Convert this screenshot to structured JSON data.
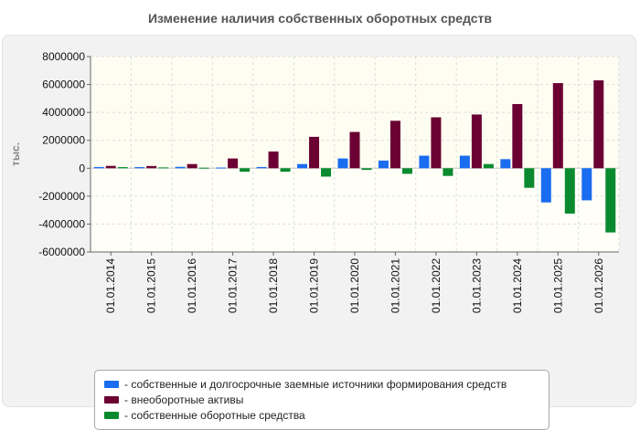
{
  "chart_data": {
    "type": "bar",
    "title": "Изменение наличия собственных оборотных средств",
    "ylabel": "тыс.",
    "xlabel": "",
    "ylim": [
      -6000000,
      8000000
    ],
    "yticks": [
      "8000000",
      "6000000",
      "4000000",
      "2000000",
      "0",
      "-2000000",
      "-4000000",
      "-6000000"
    ],
    "grid": true,
    "legend_position": "bottom",
    "categories": [
      "01.01.2014",
      "01.01.2015",
      "01.01.2016",
      "01.01.2017",
      "01.01.2018",
      "01.01.2019",
      "01.01.2020",
      "01.01.2021",
      "01.01.2022",
      "01.01.2023",
      "01.01.2024",
      "01.01.2025",
      "01.01.2026"
    ],
    "series": [
      {
        "name": "- собственные и долгосрочные заемные источники формирования средств",
        "color": "#1a6cf0",
        "values": [
          90000,
          80000,
          100000,
          50000,
          90000,
          300000,
          700000,
          550000,
          900000,
          900000,
          650000,
          -2450000,
          -2300000
        ]
      },
      {
        "name": "- внеоборотные активы",
        "color": "#6b0033",
        "values": [
          170000,
          160000,
          300000,
          700000,
          1200000,
          2250000,
          2600000,
          3400000,
          3650000,
          3850000,
          4600000,
          6100000,
          6300000
        ]
      },
      {
        "name": "- собственные оборотные средства",
        "color": "#0a8a2e",
        "values": [
          80000,
          60000,
          40000,
          -250000,
          -250000,
          -600000,
          -120000,
          -400000,
          -550000,
          300000,
          -1400000,
          -3250000,
          -4600000
        ]
      }
    ]
  }
}
